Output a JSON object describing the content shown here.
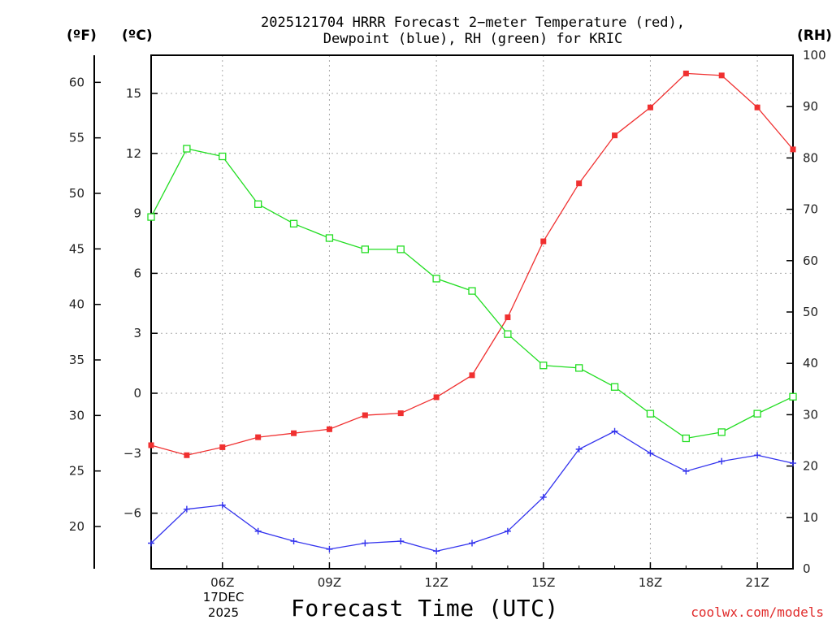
{
  "title_line1": "2025121704 HRRR Forecast 2−meter Temperature (red),",
  "title_line2": "Dewpoint (blue), RH (green) for KRIC",
  "unit_f": "(ºF)",
  "unit_c": "(ºC)",
  "unit_rh": "(RH)",
  "x_title": "Forecast Time (UTC)",
  "watermark": "coolwx.com/models",
  "x_sub_day": "17DEC",
  "x_sub_year": "2025",
  "colors": {
    "temperature": "#f03030",
    "dewpoint": "#3333ee",
    "rh": "#22dd22",
    "grid": "#aaaaaa"
  },
  "chart_data": {
    "type": "line",
    "title": "2025121704 HRRR Forecast 2-meter Temperature (red), Dewpoint (blue), RH (green) for KRIC",
    "xlabel": "Forecast Time (UTC)",
    "x_hours": [
      4,
      5,
      6,
      7,
      8,
      9,
      10,
      11,
      12,
      13,
      14,
      15,
      16,
      17,
      18,
      19,
      20,
      21,
      22
    ],
    "x_ticks": [
      {
        "hour": 6,
        "label": "06Z"
      },
      {
        "hour": 9,
        "label": "09Z"
      },
      {
        "hour": 12,
        "label": "12Z"
      },
      {
        "hour": 15,
        "label": "15Z"
      },
      {
        "hour": 18,
        "label": "18Z"
      },
      {
        "hour": 21,
        "label": "21Z"
      }
    ],
    "xlim": [
      4,
      22
    ],
    "y_left_celsius": {
      "label": "(ºC)",
      "ticks": [
        "15",
        "12",
        "9",
        "6",
        "3",
        "0",
        "−3",
        "−6"
      ],
      "tick_values": [
        15,
        12,
        9,
        6,
        3,
        0,
        -3,
        -6
      ],
      "lim": [
        -8.6,
        17.1
      ]
    },
    "y_left_fahrenheit": {
      "label": "(ºF)",
      "ticks": [
        "60",
        "55",
        "50",
        "45",
        "40",
        "35",
        "30",
        "25",
        "20"
      ],
      "tick_values": [
        60,
        55,
        50,
        45,
        40,
        35,
        30,
        25,
        20
      ]
    },
    "y_right_rh": {
      "label": "(RH)",
      "ticks": [
        "100",
        "90",
        "80",
        "70",
        "60",
        "50",
        "40",
        "30",
        "20",
        "10",
        "0"
      ],
      "tick_values": [
        100,
        90,
        80,
        70,
        60,
        50,
        40,
        30,
        20,
        10,
        0
      ],
      "lim": [
        0,
        100
      ]
    },
    "series": [
      {
        "name": "Temperature",
        "axis": "celsius",
        "marker": "filled-square",
        "values": [
          -2.6,
          -3.1,
          -2.7,
          -2.2,
          -2.0,
          -1.8,
          -1.1,
          -1.0,
          -0.2,
          0.9,
          3.8,
          7.6,
          10.5,
          12.9,
          14.3,
          16.0,
          15.9,
          14.3,
          12.2
        ]
      },
      {
        "name": "Dewpoint",
        "axis": "celsius",
        "marker": "plus",
        "values": [
          -7.5,
          -5.8,
          -5.6,
          -6.9,
          -7.4,
          -7.8,
          -7.5,
          -7.4,
          -7.9,
          -7.5,
          -6.9,
          -5.2,
          -2.8,
          -1.9,
          -3.0,
          -3.9,
          -3.4,
          -3.1,
          -3.5
        ]
      },
      {
        "name": "RH",
        "axis": "rh",
        "marker": "open-square",
        "values": [
          68.5,
          81.8,
          80.3,
          71.0,
          67.2,
          64.4,
          62.2,
          62.2,
          56.5,
          54.1,
          45.7,
          39.6,
          39.1,
          35.4,
          30.2,
          25.4,
          26.6,
          30.2,
          33.5
        ]
      }
    ]
  }
}
